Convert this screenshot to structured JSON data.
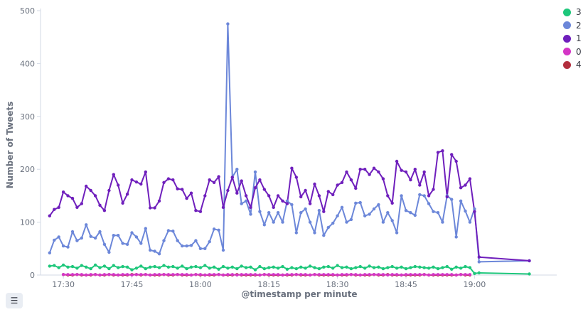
{
  "chart_data": {
    "type": "line",
    "xlabel": "@timestamp per minute",
    "ylabel": "Number of Tweets",
    "ylim": [
      0,
      500
    ],
    "yticks": [
      0,
      100,
      200,
      300,
      400,
      500
    ],
    "xticks": [
      "17:30",
      "17:45",
      "18:00",
      "18:15",
      "18:30",
      "18:45",
      "19:00"
    ],
    "legend_position": "top-right",
    "grid": false,
    "x": [
      "17:27",
      "17:28",
      "17:29",
      "17:30",
      "17:31",
      "17:32",
      "17:33",
      "17:34",
      "17:35",
      "17:36",
      "17:37",
      "17:38",
      "17:39",
      "17:40",
      "17:41",
      "17:42",
      "17:43",
      "17:44",
      "17:45",
      "17:46",
      "17:47",
      "17:48",
      "17:49",
      "17:50",
      "17:51",
      "17:52",
      "17:53",
      "17:54",
      "17:55",
      "17:56",
      "17:57",
      "17:58",
      "17:59",
      "18:00",
      "18:01",
      "18:02",
      "18:03",
      "18:04",
      "18:05",
      "18:06",
      "18:07",
      "18:08",
      "18:09",
      "18:10",
      "18:11",
      "18:12",
      "18:13",
      "18:14",
      "18:15",
      "18:16",
      "18:17",
      "18:18",
      "18:19",
      "18:20",
      "18:21",
      "18:22",
      "18:23",
      "18:24",
      "18:25",
      "18:26",
      "18:27",
      "18:28",
      "18:29",
      "18:30",
      "18:31",
      "18:32",
      "18:33",
      "18:34",
      "18:35",
      "18:36",
      "18:37",
      "18:38",
      "18:39",
      "18:40",
      "18:41",
      "18:42",
      "18:43",
      "18:44",
      "18:45",
      "18:46",
      "18:47",
      "18:48",
      "18:49",
      "18:50",
      "18:51",
      "18:52",
      "18:53",
      "18:54",
      "18:55",
      "18:56",
      "18:57",
      "18:58",
      "18:59",
      "19:00",
      "19:01",
      "19:12"
    ],
    "series": [
      {
        "name": "3",
        "color": "#1ec77b",
        "values": [
          17,
          18,
          14,
          19,
          15,
          16,
          13,
          18,
          15,
          12,
          19,
          14,
          17,
          12,
          18,
          14,
          16,
          15,
          10,
          13,
          17,
          12,
          15,
          16,
          14,
          18,
          15,
          16,
          13,
          17,
          12,
          15,
          16,
          14,
          18,
          13,
          15,
          11,
          16,
          13,
          15,
          12,
          17,
          14,
          15,
          10,
          16,
          12,
          14,
          15,
          13,
          16,
          11,
          14,
          12,
          15,
          13,
          17,
          14,
          12,
          15,
          16,
          13,
          18,
          14,
          15,
          12,
          14,
          16,
          13,
          17,
          14,
          15,
          12,
          14,
          16,
          13,
          15,
          12,
          14,
          16,
          15,
          14,
          13,
          15,
          12,
          14,
          16,
          11,
          15,
          13,
          16,
          14,
          3,
          4,
          2
        ]
      },
      {
        "name": "2",
        "color": "#6c87d9",
        "values": [
          42,
          66,
          72,
          55,
          53,
          82,
          65,
          70,
          95,
          73,
          70,
          82,
          58,
          43,
          75,
          75,
          60,
          58,
          80,
          72,
          60,
          88,
          47,
          45,
          40,
          65,
          84,
          83,
          65,
          55,
          55,
          56,
          65,
          50,
          50,
          63,
          87,
          85,
          47,
          475,
          185,
          200,
          135,
          140,
          115,
          195,
          120,
          95,
          118,
          100,
          118,
          100,
          140,
          133,
          80,
          118,
          125,
          100,
          80,
          122,
          75,
          90,
          98,
          112,
          128,
          100,
          105,
          136,
          137,
          112,
          115,
          125,
          133,
          100,
          118,
          103,
          80,
          150,
          122,
          118,
          113,
          152,
          150,
          135,
          120,
          118,
          100,
          150,
          143,
          72,
          140,
          121,
          100,
          125,
          25,
          27
        ]
      },
      {
        "name": "1",
        "color": "#6f1fbc",
        "values": [
          112,
          124,
          128,
          157,
          150,
          145,
          128,
          135,
          168,
          160,
          150,
          132,
          122,
          160,
          190,
          170,
          136,
          153,
          180,
          176,
          172,
          195,
          127,
          127,
          140,
          175,
          182,
          180,
          163,
          162,
          145,
          155,
          122,
          120,
          150,
          180,
          175,
          186,
          128,
          160,
          185,
          155,
          178,
          150,
          128,
          165,
          180,
          162,
          150,
          128,
          150,
          140,
          135,
          202,
          185,
          148,
          160,
          135,
          172,
          150,
          120,
          158,
          152,
          170,
          175,
          195,
          180,
          164,
          200,
          200,
          190,
          202,
          195,
          182,
          150,
          136,
          215,
          198,
          195,
          180,
          200,
          170,
          195,
          150,
          162,
          232,
          235,
          148,
          228,
          215,
          165,
          170,
          182,
          120,
          34,
          27
        ]
      },
      {
        "name": "0",
        "color": "#d436c6",
        "values": [
          null,
          null,
          null,
          1,
          1,
          1,
          1,
          1,
          0,
          1,
          1,
          0,
          1,
          1,
          1,
          0,
          1,
          1,
          0,
          1,
          1,
          1,
          0,
          1,
          1,
          1,
          1,
          1,
          1,
          1,
          1,
          0,
          1,
          1,
          0,
          1,
          1,
          1,
          0,
          1,
          1,
          0,
          1,
          1,
          1,
          1,
          0,
          1,
          1,
          1,
          1,
          0,
          1,
          1,
          1,
          1,
          1,
          0,
          1,
          1,
          1,
          1,
          1,
          0,
          1,
          1,
          1,
          1,
          0,
          1,
          1,
          1,
          1,
          1,
          0,
          1,
          1,
          0,
          1,
          1,
          1,
          1,
          1,
          0,
          1,
          1,
          1,
          1,
          1,
          0,
          1,
          1,
          1,
          null,
          null,
          null
        ]
      },
      {
        "name": "4",
        "color": "#b32e3e",
        "values": [
          null,
          null,
          null,
          1,
          0,
          0,
          1,
          0,
          0,
          0,
          1,
          0,
          0,
          1,
          0,
          0,
          0,
          0,
          1,
          1,
          0,
          1,
          0,
          0,
          0,
          1,
          0,
          0,
          1,
          0,
          0,
          0,
          1,
          0,
          0,
          0,
          0,
          1,
          0,
          0,
          0,
          1,
          0,
          0,
          0,
          0,
          0,
          1,
          0,
          0,
          0,
          0,
          0,
          0,
          1,
          0,
          0,
          0,
          1,
          0,
          0,
          0,
          0,
          0,
          0,
          0,
          1,
          0,
          0,
          0,
          0,
          1,
          0,
          0,
          1,
          0,
          0,
          0,
          0,
          0,
          0,
          0,
          1,
          0,
          0,
          0,
          0,
          0,
          0,
          0,
          1,
          0,
          0,
          null,
          null,
          null
        ]
      }
    ]
  },
  "legend": {
    "items": [
      {
        "label": "3",
        "color": "#1ec77b"
      },
      {
        "label": "2",
        "color": "#6c87d9"
      },
      {
        "label": "1",
        "color": "#6f1fbc"
      },
      {
        "label": "0",
        "color": "#d436c6"
      },
      {
        "label": "4",
        "color": "#b32e3e"
      }
    ]
  },
  "legend_toggle_icon": "list-icon"
}
